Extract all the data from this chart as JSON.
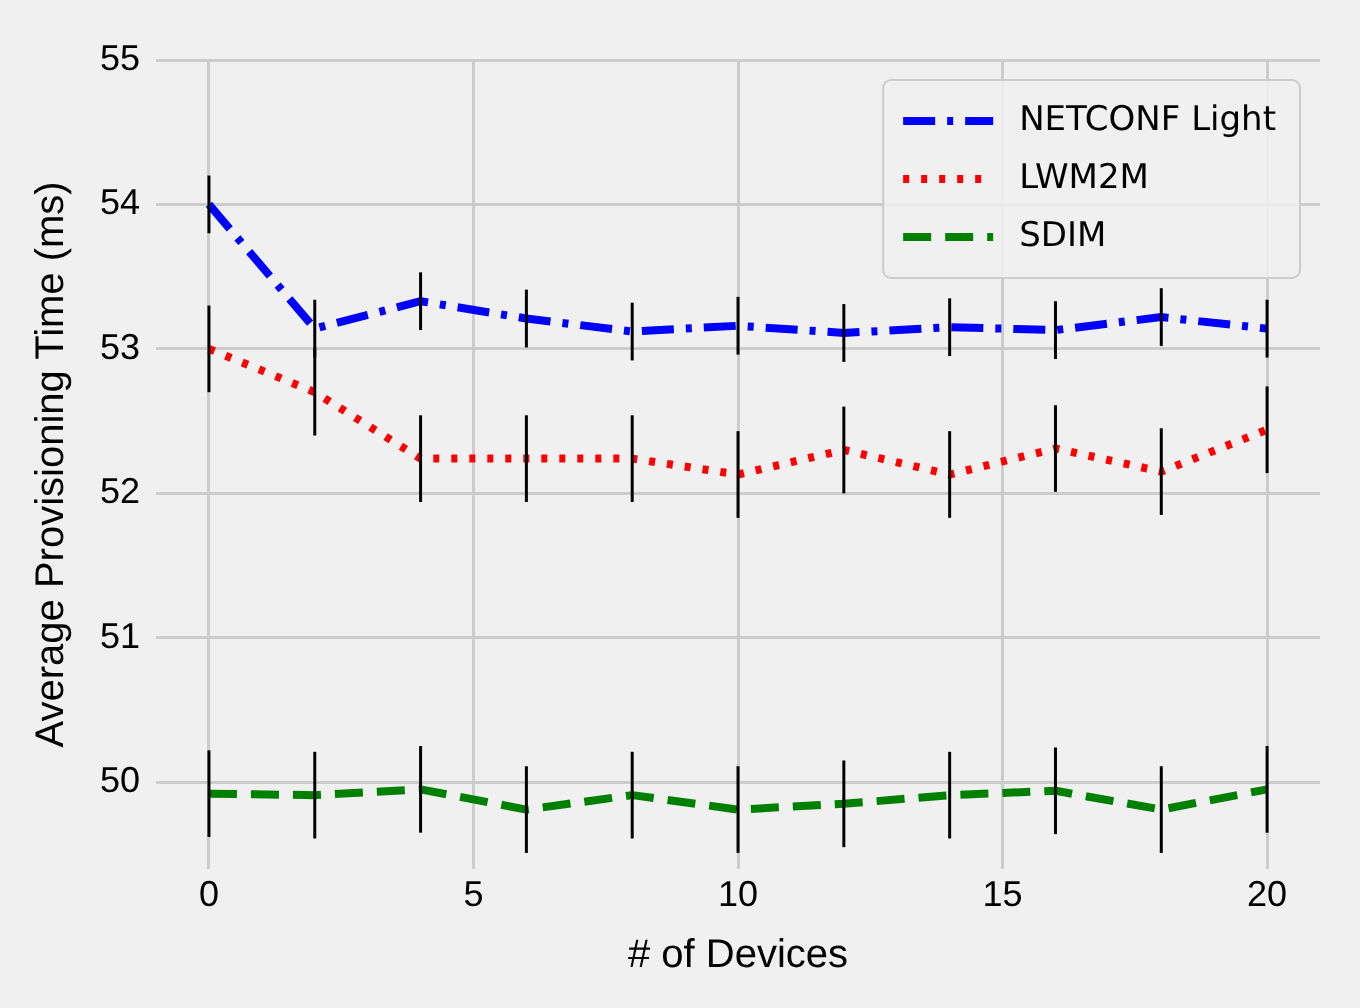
{
  "chart_data": {
    "type": "line",
    "xlabel": "# of Devices",
    "ylabel": "Average Provisioning Time (ms)",
    "x": [
      0,
      2,
      4,
      6,
      8,
      10,
      12,
      14,
      16,
      18,
      20
    ],
    "series": [
      {
        "name": "NETCONF Light",
        "color": "#0000ff",
        "line_style": "dashdot",
        "values": [
          54.0,
          53.14,
          53.33,
          53.21,
          53.12,
          53.16,
          53.11,
          53.15,
          53.13,
          53.22,
          53.14
        ],
        "errors": [
          0.2,
          0.2,
          0.2,
          0.2,
          0.2,
          0.2,
          0.2,
          0.2,
          0.2,
          0.2,
          0.2
        ]
      },
      {
        "name": "LWM2M",
        "color": "#ff0000",
        "line_style": "dotted",
        "values": [
          53.0,
          52.7,
          52.24,
          52.24,
          52.24,
          52.13,
          52.3,
          52.13,
          52.31,
          52.15,
          52.44
        ],
        "errors": [
          0.3,
          0.3,
          0.3,
          0.3,
          0.3,
          0.3,
          0.3,
          0.3,
          0.3,
          0.3,
          0.3
        ]
      },
      {
        "name": "SDIM",
        "color": "#008000",
        "line_style": "dashed",
        "values": [
          49.92,
          49.91,
          49.95,
          49.81,
          49.91,
          49.81,
          49.85,
          49.91,
          49.94,
          49.81,
          49.95
        ],
        "errors": [
          0.3,
          0.3,
          0.3,
          0.3,
          0.3,
          0.3,
          0.3,
          0.3,
          0.3,
          0.3,
          0.3
        ]
      }
    ],
    "xlim": [
      -1,
      21
    ],
    "xticks": [
      0,
      5,
      10,
      15,
      20
    ],
    "ylim": [
      49.4,
      55
    ],
    "yticks": [
      50,
      51,
      52,
      53,
      54,
      55
    ],
    "grid": true,
    "legend": "top right",
    "marker": "none"
  }
}
